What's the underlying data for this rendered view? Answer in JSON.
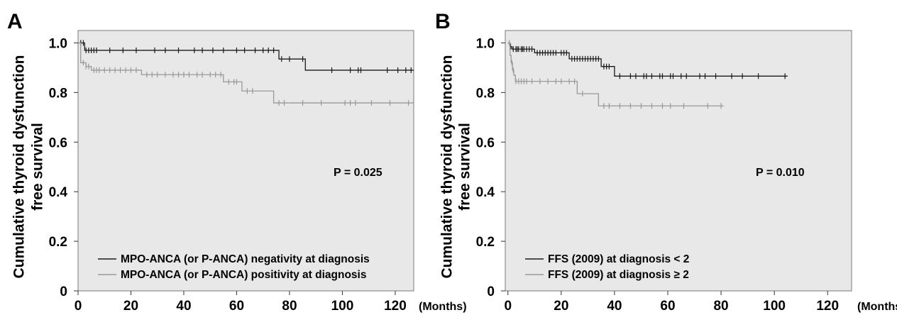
{
  "chart_data": [
    {
      "type": "line",
      "panel_label": "A",
      "ylabel_line1": "Cumulative thyroid dysfunction",
      "ylabel_line2": "free survival",
      "x_unit": "(Months)",
      "xlim": [
        0,
        127
      ],
      "ylim": [
        0,
        1.05
      ],
      "xticks": [
        0,
        20,
        40,
        60,
        80,
        100,
        120
      ],
      "yticks": [
        0,
        0.2,
        0.4,
        0.6,
        0.8,
        1.0
      ],
      "ytick_labels": [
        "0",
        "0.2",
        "0.4",
        "0.6",
        "0.8",
        "1.0"
      ],
      "annotation": "P = 0.025",
      "legend_position": "bottom-left",
      "background": "#e8e8e8",
      "series": [
        {
          "name": "MPO-ANCA (or P-ANCA) negativity at diagnosis",
          "color": "#1a1a1a",
          "steps": [
            [
              0,
              1.0
            ],
            [
              2.5,
              0.97
            ],
            [
              76,
              0.935
            ],
            [
              86,
              0.89
            ],
            [
              127,
              0.89
            ]
          ],
          "censors": [
            1,
            2,
            3,
            4,
            5,
            6,
            7,
            12,
            17,
            22,
            29,
            33,
            38,
            44,
            47,
            51,
            55,
            60,
            63,
            67,
            70,
            72,
            74,
            77,
            80,
            85,
            96,
            103,
            106,
            107,
            117,
            121,
            124,
            126
          ]
        },
        {
          "name": "MPO-ANCA (or P-ANCA) positivity at diagnosis",
          "color": "#999999",
          "steps": [
            [
              0,
              1.0
            ],
            [
              1,
              0.92
            ],
            [
              3,
              0.905
            ],
            [
              5,
              0.89
            ],
            [
              24,
              0.872
            ],
            [
              55,
              0.843
            ],
            [
              62,
              0.806
            ],
            [
              74,
              0.758
            ],
            [
              127,
              0.758
            ]
          ],
          "censors": [
            2,
            3,
            4,
            6,
            7,
            8,
            10,
            12,
            14,
            16,
            18,
            20,
            22,
            26,
            28,
            30,
            33,
            36,
            38,
            40,
            42,
            45,
            47,
            50,
            52,
            54,
            57,
            59,
            60,
            64,
            66,
            76,
            78,
            85,
            92,
            101,
            103,
            105,
            111,
            118,
            125
          ]
        }
      ]
    },
    {
      "type": "line",
      "panel_label": "B",
      "ylabel_line1": "Cumulative thyroid dysfunction",
      "ylabel_line2": "free survival",
      "x_unit": "(Months)",
      "xlim": [
        -1,
        129
      ],
      "ylim": [
        0,
        1.05
      ],
      "xticks": [
        0,
        20,
        40,
        60,
        80,
        100,
        120
      ],
      "yticks": [
        0,
        0.2,
        0.4,
        0.6,
        0.8,
        1.0
      ],
      "ytick_labels": [
        "0",
        "0.2",
        "0.4",
        "0.6",
        "0.8",
        "1.0"
      ],
      "annotation": "P = 0.010",
      "legend_position": "bottom-left",
      "background": "#e8e8e8",
      "series": [
        {
          "name": "FFS (2009) at diagnosis < 2",
          "color": "#1a1a1a",
          "steps": [
            [
              0,
              1.0
            ],
            [
              0.8,
              0.985
            ],
            [
              1.5,
              0.975
            ],
            [
              10,
              0.96
            ],
            [
              23,
              0.936
            ],
            [
              35,
              0.905
            ],
            [
              40,
              0.866
            ],
            [
              105,
              0.866
            ]
          ],
          "censors": [
            1,
            2,
            3,
            3.5,
            4,
            5,
            5.5,
            6,
            7,
            8,
            9,
            11,
            12,
            13,
            14,
            15,
            16,
            17,
            18,
            20,
            21,
            22,
            24,
            25,
            26,
            27,
            28,
            29,
            30,
            31,
            32,
            33,
            34,
            36,
            37,
            38,
            42,
            46,
            48,
            51,
            52,
            54,
            57,
            58,
            61,
            62,
            65,
            67,
            72,
            74,
            78,
            84,
            88,
            94,
            104
          ]
        },
        {
          "name": "FFS (2009) at diagnosis ≥ 2",
          "color": "#999999",
          "steps": [
            [
              0,
              1.0
            ],
            [
              0.8,
              0.95
            ],
            [
              1.2,
              0.92
            ],
            [
              1.7,
              0.89
            ],
            [
              2.2,
              0.87
            ],
            [
              2.8,
              0.845
            ],
            [
              26,
              0.795
            ],
            [
              34,
              0.746
            ],
            [
              81,
              0.746
            ]
          ],
          "censors": [
            0.5,
            1.5,
            2,
            3,
            4,
            5,
            6,
            7,
            9,
            12,
            15,
            18,
            20,
            23,
            25,
            28,
            36,
            38,
            42,
            46,
            50,
            54,
            58,
            61,
            66,
            75,
            80
          ]
        }
      ]
    }
  ]
}
